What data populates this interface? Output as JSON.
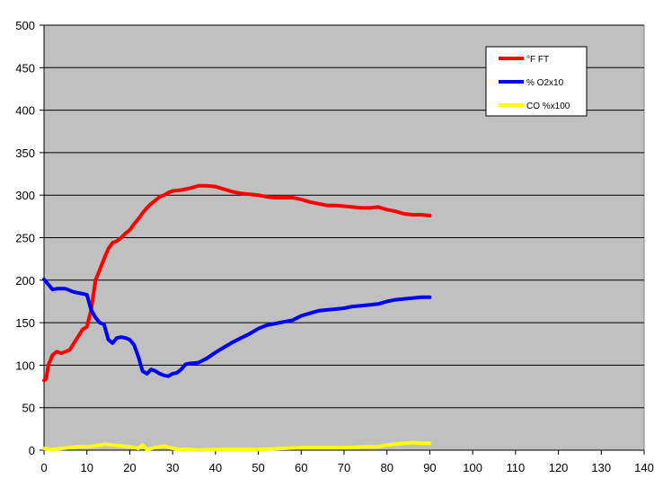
{
  "chart_data": {
    "type": "line",
    "title": "",
    "xlabel": "",
    "ylabel": "",
    "xlim": [
      0,
      140
    ],
    "ylim": [
      0,
      500
    ],
    "x_ticks": [
      0,
      10,
      20,
      30,
      40,
      50,
      60,
      70,
      80,
      90,
      100,
      110,
      120,
      130,
      140
    ],
    "y_ticks": [
      0,
      50,
      100,
      150,
      200,
      250,
      300,
      350,
      400,
      450,
      500
    ],
    "grid": "horizontal",
    "legend_position": "top-right",
    "plot_background": "#c0c0c0",
    "series": [
      {
        "name": "°F FT",
        "color": "#ff0000",
        "points": [
          [
            0,
            82
          ],
          [
            0.5,
            84
          ],
          [
            1,
            100
          ],
          [
            2,
            112
          ],
          [
            3,
            116
          ],
          [
            4,
            114
          ],
          [
            5,
            116
          ],
          [
            6,
            118
          ],
          [
            7,
            126
          ],
          [
            8,
            134
          ],
          [
            9,
            142
          ],
          [
            10,
            145
          ],
          [
            11,
            165
          ],
          [
            12,
            200
          ],
          [
            13,
            212
          ],
          [
            14,
            225
          ],
          [
            15,
            237
          ],
          [
            16,
            244
          ],
          [
            17,
            246
          ],
          [
            18,
            250
          ],
          [
            19,
            255
          ],
          [
            20,
            259
          ],
          [
            21,
            266
          ],
          [
            22,
            272
          ],
          [
            23,
            279
          ],
          [
            24,
            285
          ],
          [
            25,
            290
          ],
          [
            26,
            294
          ],
          [
            27,
            298
          ],
          [
            28,
            300
          ],
          [
            29,
            303
          ],
          [
            30,
            305
          ],
          [
            32,
            306
          ],
          [
            34,
            308
          ],
          [
            36,
            311
          ],
          [
            38,
            311
          ],
          [
            40,
            310
          ],
          [
            42,
            307
          ],
          [
            44,
            304
          ],
          [
            46,
            302
          ],
          [
            48,
            301
          ],
          [
            50,
            300
          ],
          [
            52,
            298
          ],
          [
            54,
            297
          ],
          [
            56,
            297
          ],
          [
            58,
            297
          ],
          [
            60,
            295
          ],
          [
            62,
            292
          ],
          [
            64,
            290
          ],
          [
            66,
            288
          ],
          [
            68,
            288
          ],
          [
            70,
            287
          ],
          [
            72,
            286
          ],
          [
            74,
            285
          ],
          [
            76,
            285
          ],
          [
            78,
            286
          ],
          [
            80,
            283
          ],
          [
            82,
            281
          ],
          [
            84,
            278
          ],
          [
            86,
            277
          ],
          [
            88,
            277
          ],
          [
            90,
            276
          ]
        ]
      },
      {
        "name": "% O2x10",
        "color": "#0000ff",
        "points": [
          [
            0,
            201
          ],
          [
            1,
            195
          ],
          [
            2,
            189
          ],
          [
            3,
            190
          ],
          [
            4,
            190
          ],
          [
            5,
            190
          ],
          [
            6,
            188
          ],
          [
            7,
            186
          ],
          [
            8,
            185
          ],
          [
            9,
            184
          ],
          [
            10,
            183
          ],
          [
            11,
            165
          ],
          [
            12,
            156
          ],
          [
            13,
            150
          ],
          [
            14,
            148
          ],
          [
            15,
            130
          ],
          [
            16,
            126
          ],
          [
            17,
            132
          ],
          [
            18,
            133
          ],
          [
            19,
            132
          ],
          [
            20,
            130
          ],
          [
            21,
            124
          ],
          [
            22,
            110
          ],
          [
            23,
            93
          ],
          [
            24,
            90
          ],
          [
            25,
            95
          ],
          [
            26,
            93
          ],
          [
            27,
            90
          ],
          [
            28,
            88
          ],
          [
            29,
            87
          ],
          [
            30,
            90
          ],
          [
            31,
            91
          ],
          [
            32,
            95
          ],
          [
            33,
            101
          ],
          [
            34,
            102
          ],
          [
            36,
            103
          ],
          [
            38,
            108
          ],
          [
            40,
            115
          ],
          [
            42,
            121
          ],
          [
            44,
            127
          ],
          [
            46,
            132
          ],
          [
            48,
            137
          ],
          [
            50,
            143
          ],
          [
            52,
            147
          ],
          [
            54,
            149
          ],
          [
            56,
            151
          ],
          [
            58,
            153
          ],
          [
            60,
            158
          ],
          [
            62,
            161
          ],
          [
            64,
            164
          ],
          [
            66,
            165
          ],
          [
            68,
            166
          ],
          [
            70,
            167
          ],
          [
            72,
            169
          ],
          [
            74,
            170
          ],
          [
            76,
            171
          ],
          [
            78,
            172
          ],
          [
            80,
            175
          ],
          [
            82,
            177
          ],
          [
            84,
            178
          ],
          [
            86,
            179
          ],
          [
            88,
            180
          ],
          [
            90,
            180
          ]
        ]
      },
      {
        "name": "CO %x100",
        "color": "#ffff00",
        "points": [
          [
            0,
            2
          ],
          [
            2,
            1
          ],
          [
            4,
            2
          ],
          [
            6,
            3
          ],
          [
            8,
            4
          ],
          [
            10,
            4
          ],
          [
            12,
            5
          ],
          [
            14,
            7
          ],
          [
            16,
            6
          ],
          [
            18,
            5
          ],
          [
            20,
            4
          ],
          [
            22,
            2
          ],
          [
            23,
            6
          ],
          [
            24,
            1
          ],
          [
            26,
            3
          ],
          [
            28,
            5
          ],
          [
            30,
            2
          ],
          [
            32,
            1
          ],
          [
            34,
            1
          ],
          [
            36,
            0
          ],
          [
            40,
            1
          ],
          [
            45,
            1
          ],
          [
            50,
            1
          ],
          [
            55,
            2
          ],
          [
            60,
            3
          ],
          [
            65,
            3
          ],
          [
            70,
            3
          ],
          [
            75,
            4
          ],
          [
            78,
            4
          ],
          [
            80,
            6
          ],
          [
            82,
            7
          ],
          [
            84,
            8
          ],
          [
            86,
            9
          ],
          [
            88,
            8
          ],
          [
            90,
            8
          ]
        ]
      }
    ]
  }
}
